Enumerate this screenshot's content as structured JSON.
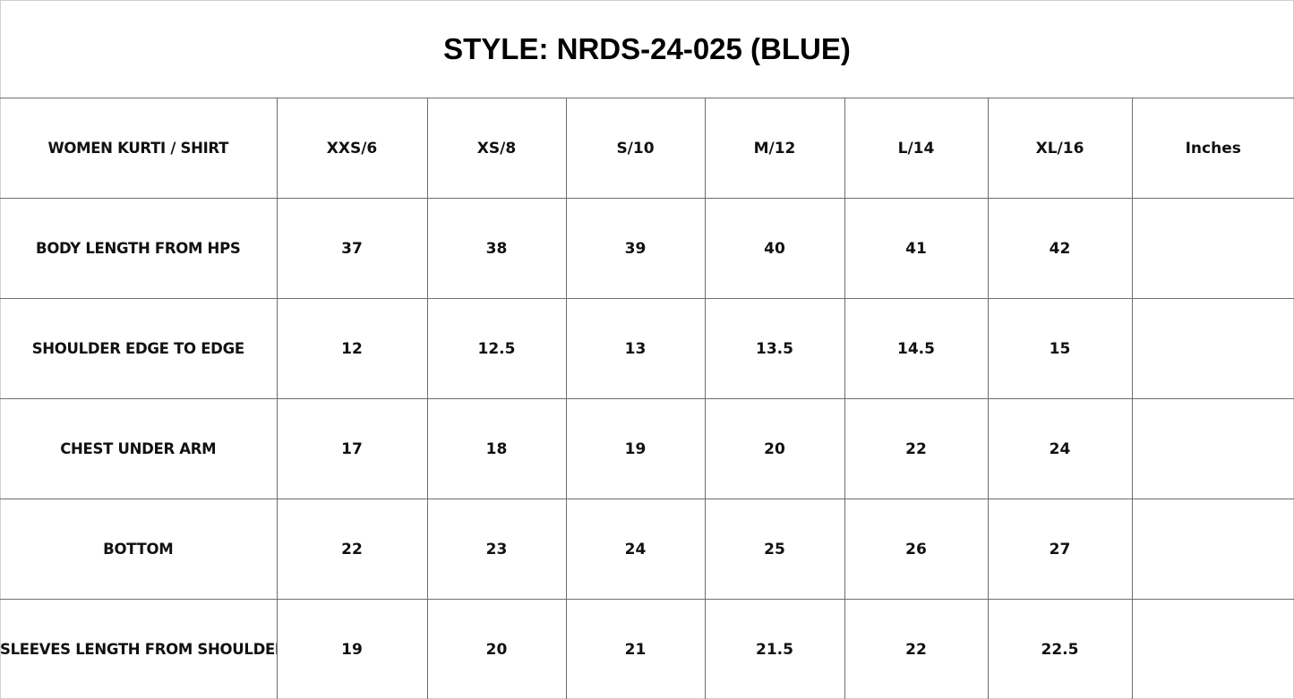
{
  "title": "STYLE: NRDS-24-025 (BLUE)",
  "header": [
    "WOMEN KURTI / SHIRT",
    "XXS/6",
    "XS/8",
    "S/10",
    "M/12",
    "L/14",
    "XL/16",
    "Inches"
  ],
  "rows": [
    {
      "label": "BODY LENGTH FROM HPS",
      "values": [
        "37",
        "38",
        "39",
        "40",
        "41",
        "42",
        ""
      ]
    },
    {
      "label": "SHOULDER EDGE TO EDGE",
      "values": [
        "12",
        "12.5",
        "13",
        "13.5",
        "14.5",
        "15",
        ""
      ]
    },
    {
      "label": "CHEST UNDER ARM",
      "values": [
        "17",
        "18",
        "19",
        "20",
        "22",
        "24",
        ""
      ]
    },
    {
      "label": "BOTTOM",
      "values": [
        "22",
        "23",
        "24",
        "25",
        "26",
        "27",
        ""
      ]
    },
    {
      "label": "SLEEVES LENGTH FROM SHOULDER",
      "values": [
        "19",
        "20",
        "21",
        "21.5",
        "22",
        "22.5",
        ""
      ]
    }
  ]
}
